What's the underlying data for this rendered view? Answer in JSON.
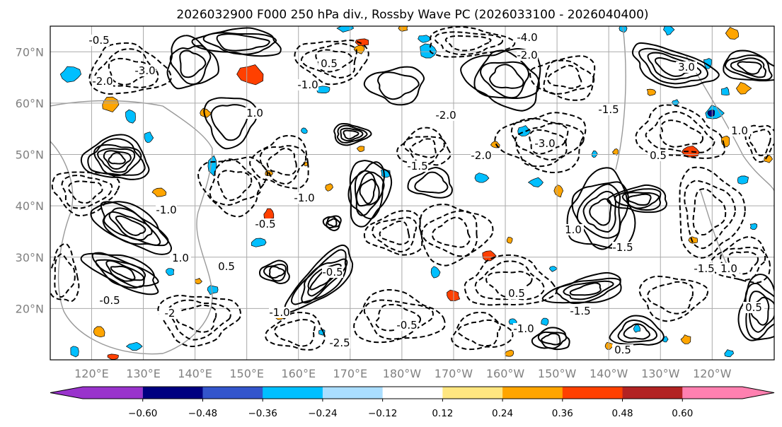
{
  "chart_data": {
    "type": "heatmap",
    "title": "2026032900 F000 250 hPa div., Rossby Wave PC (2026033100 - 2026040400)",
    "x_ticks": [
      "120°E",
      "130°E",
      "140°E",
      "150°E",
      "160°E",
      "170°E",
      "180°W",
      "170°W",
      "160°W",
      "150°W",
      "140°W",
      "130°W",
      "120°W"
    ],
    "x_range_lon_east": [
      112,
      252
    ],
    "y_ticks": [
      "20°N",
      "30°N",
      "40°N",
      "50°N",
      "60°N",
      "70°N"
    ],
    "y_values": [
      20,
      30,
      40,
      50,
      60,
      70
    ],
    "y_range": [
      10,
      75
    ],
    "colorbar": {
      "levels": [
        -0.72,
        -0.6,
        -0.48,
        -0.36,
        -0.24,
        -0.12,
        0.12,
        0.24,
        0.36,
        0.48,
        0.6,
        0.72
      ],
      "tick_labels": [
        "−0.60",
        "−0.48",
        "−0.36",
        "−0.24",
        "−0.12",
        "0.12",
        "0.24",
        "0.36",
        "0.48",
        "0.60"
      ],
      "colors": [
        "#9933cc",
        "#000080",
        "#3355cc",
        "#00bfff",
        "#aadeff",
        "#ffffff",
        "#ffe680",
        "#ffa500",
        "#ff4000",
        "#b22222",
        "#ff80b0"
      ],
      "extend": "both"
    },
    "contour_labels": [
      "-0.5",
      "-3.0",
      "-2.0",
      "-4.0",
      "-2.0",
      "3.0",
      "0.5",
      "-1.0",
      "1.0",
      "-2.0",
      "-3.0",
      "-1.5",
      "-2.0",
      "-0.5",
      "0.5",
      "-1.0",
      "-0.5",
      "-0.5",
      "-2.5",
      "-1.5",
      "1.0",
      "-1.5",
      "1.0",
      "0.5",
      "-1.5",
      "-1.0",
      "-0.5",
      "-1.0",
      "-2",
      "0.5",
      "-1.5",
      "0.5",
      "0.5",
      "1.0",
      "-1.0",
      "1.0"
    ],
    "colors_fill": {
      "blue": "#00bfff",
      "dark_blue": "#000080",
      "orange": "#ffa500",
      "red_orange": "#ff4000",
      "map_gray": "#999999"
    }
  }
}
